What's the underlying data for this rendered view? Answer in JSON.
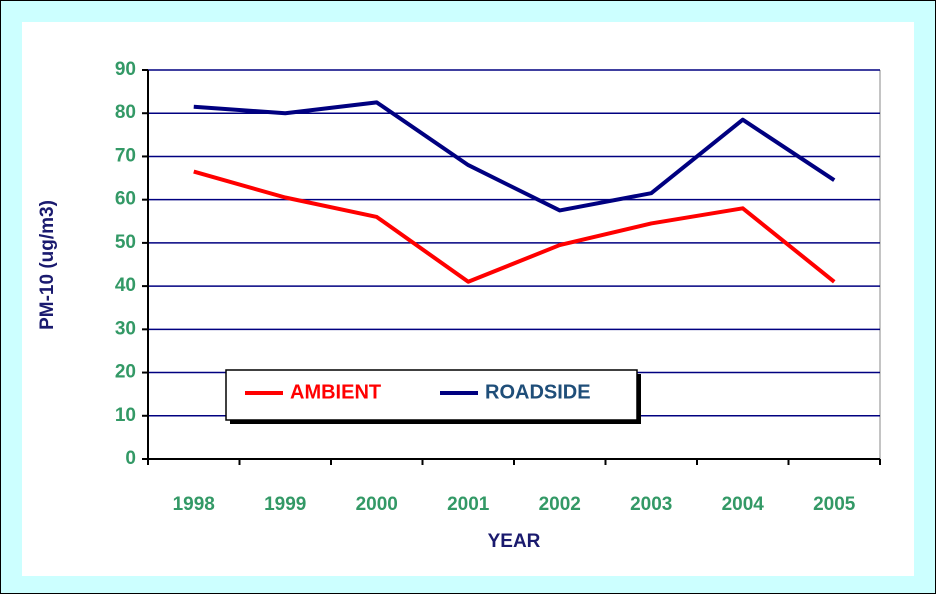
{
  "chart_data": {
    "type": "line",
    "categories": [
      "1998",
      "1999",
      "2000",
      "2001",
      "2002",
      "2003",
      "2004",
      "2005"
    ],
    "series": [
      {
        "name": "AMBIENT",
        "color": "#ff0000",
        "values": [
          66.5,
          60.5,
          56,
          41,
          49.5,
          54.5,
          58,
          41
        ]
      },
      {
        "name": "ROADSIDE",
        "color": "#000080",
        "values": [
          81.5,
          80,
          82.5,
          68,
          57.5,
          61.5,
          78.5,
          64.5
        ]
      }
    ],
    "x_label": "YEAR",
    "y_label": "PM-10 (ug/m3)",
    "ylim": [
      0,
      90
    ],
    "yticks": [
      0,
      10,
      20,
      30,
      40,
      50,
      60,
      70,
      80,
      90
    ],
    "grid": true
  }
}
